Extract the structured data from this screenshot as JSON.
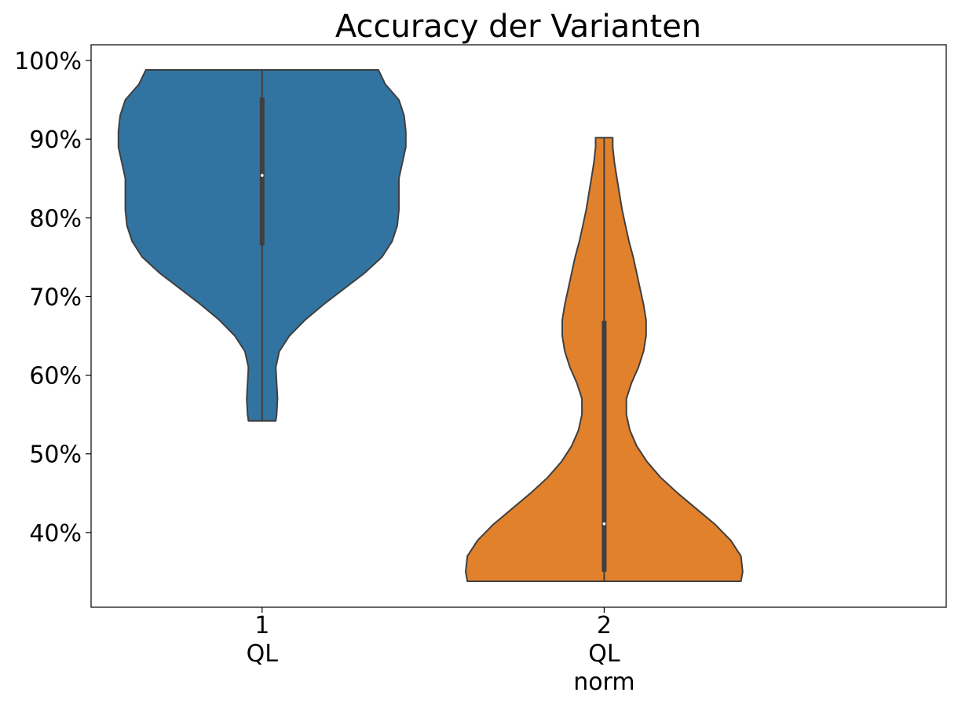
{
  "chart_data": {
    "type": "violin",
    "title": "Accuracy der Varianten",
    "xlabel": "",
    "ylabel": "",
    "y_tick_labels": [
      "40%",
      "50%",
      "60%",
      "70%",
      "80%",
      "90%",
      "100%"
    ],
    "y_ticks": [
      40,
      50,
      60,
      70,
      80,
      90,
      100
    ],
    "ylim": [
      30.5,
      102
    ],
    "grid": false,
    "categories": [
      {
        "position": "1",
        "name": "QL",
        "sub": ""
      },
      {
        "position": "2",
        "name": "QL",
        "sub": "norm"
      }
    ],
    "series": [
      {
        "color": "#3274a1",
        "min": 54.2,
        "max": 98.8,
        "q1": 76.5,
        "median": 85.4,
        "q3": 95.3,
        "density_profile": [
          [
            54.2,
            0.08
          ],
          [
            55,
            0.085
          ],
          [
            57,
            0.09
          ],
          [
            59,
            0.085
          ],
          [
            61,
            0.08
          ],
          [
            63,
            0.1
          ],
          [
            65,
            0.16
          ],
          [
            67,
            0.25
          ],
          [
            69,
            0.36
          ],
          [
            71,
            0.48
          ],
          [
            73,
            0.6
          ],
          [
            75,
            0.7
          ],
          [
            77,
            0.76
          ],
          [
            79,
            0.79
          ],
          [
            81,
            0.8
          ],
          [
            83,
            0.8
          ],
          [
            85,
            0.8
          ],
          [
            87,
            0.82
          ],
          [
            89,
            0.84
          ],
          [
            91,
            0.84
          ],
          [
            93,
            0.83
          ],
          [
            95,
            0.8
          ],
          [
            97,
            0.72
          ],
          [
            98.8,
            0.68
          ]
        ]
      },
      {
        "color": "#e1812c",
        "min": 33.8,
        "max": 90.2,
        "q1": 35,
        "median": 41.1,
        "q3": 66.9,
        "density_profile": [
          [
            33.8,
            0.8
          ],
          [
            35,
            0.81
          ],
          [
            37,
            0.8
          ],
          [
            39,
            0.74
          ],
          [
            41,
            0.65
          ],
          [
            43,
            0.54
          ],
          [
            45,
            0.43
          ],
          [
            47,
            0.33
          ],
          [
            49,
            0.25
          ],
          [
            51,
            0.19
          ],
          [
            53,
            0.15
          ],
          [
            55,
            0.13
          ],
          [
            57,
            0.13
          ],
          [
            59,
            0.16
          ],
          [
            61,
            0.2
          ],
          [
            63,
            0.23
          ],
          [
            65,
            0.245
          ],
          [
            67,
            0.245
          ],
          [
            69,
            0.23
          ],
          [
            71,
            0.21
          ],
          [
            73,
            0.19
          ],
          [
            75,
            0.17
          ],
          [
            77,
            0.145
          ],
          [
            79,
            0.125
          ],
          [
            81,
            0.105
          ],
          [
            83,
            0.09
          ],
          [
            85,
            0.075
          ],
          [
            87,
            0.06
          ],
          [
            89,
            0.05
          ],
          [
            90.2,
            0.05
          ]
        ]
      }
    ]
  }
}
